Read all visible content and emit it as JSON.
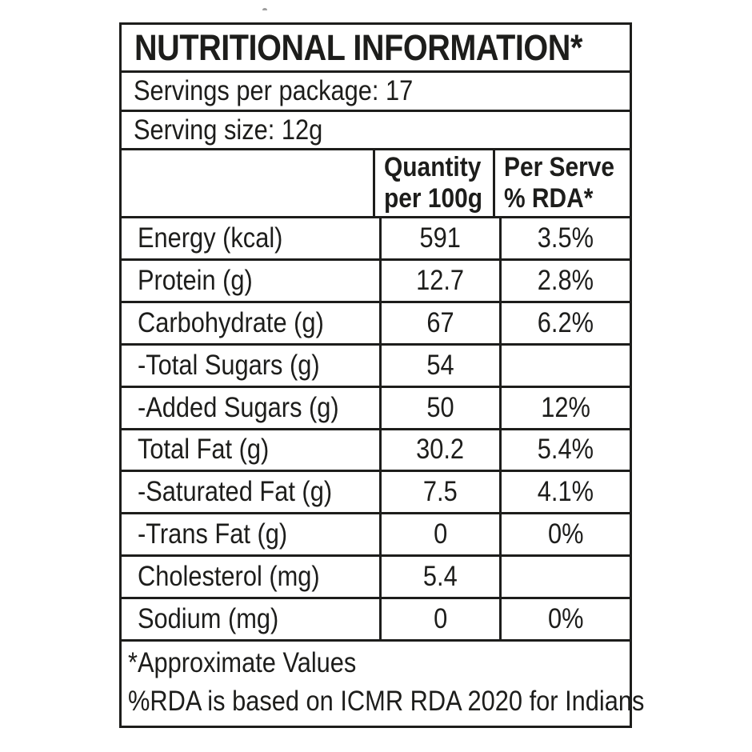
{
  "panel": {
    "title": "NUTRITIONAL INFORMATION*",
    "servings_line": "Servings per package: 17",
    "serving_size_line": "Serving size: 12g",
    "columns": {
      "nutrient_header": "",
      "quantity_line1": "Quantity",
      "quantity_line2": "per 100g",
      "per_serve_line1": "Per Serve",
      "per_serve_line2": "% RDA*"
    },
    "rows": [
      {
        "nutrient": "Energy (kcal)",
        "quantity": "591",
        "rda": "3.5%"
      },
      {
        "nutrient": "Protein (g)",
        "quantity": "12.7",
        "rda": "2.8%"
      },
      {
        "nutrient": "Carbohydrate (g)",
        "quantity": "67",
        "rda": "6.2%"
      },
      {
        "nutrient": "-Total Sugars (g)",
        "quantity": "54",
        "rda": ""
      },
      {
        "nutrient": "-Added Sugars (g)",
        "quantity": "50",
        "rda": "12%"
      },
      {
        "nutrient": "Total Fat (g)",
        "quantity": "30.2",
        "rda": "5.4%"
      },
      {
        "nutrient": "-Saturated Fat (g)",
        "quantity": "7.5",
        "rda": "4.1%"
      },
      {
        "nutrient": "-Trans Fat (g)",
        "quantity": "0",
        "rda": "0%"
      },
      {
        "nutrient": "Cholesterol (mg)",
        "quantity": "5.4",
        "rda": ""
      },
      {
        "nutrient": "Sodium (mg)",
        "quantity": "0",
        "rda": "0%"
      }
    ],
    "footnotes": {
      "approx": "*Approximate Values",
      "rda_basis": "%RDA is based on ICMR RDA 2020 for Indians"
    },
    "colors": {
      "text": "#1d1d1b",
      "border": "#1d1d1b",
      "background": "#ffffff"
    }
  }
}
